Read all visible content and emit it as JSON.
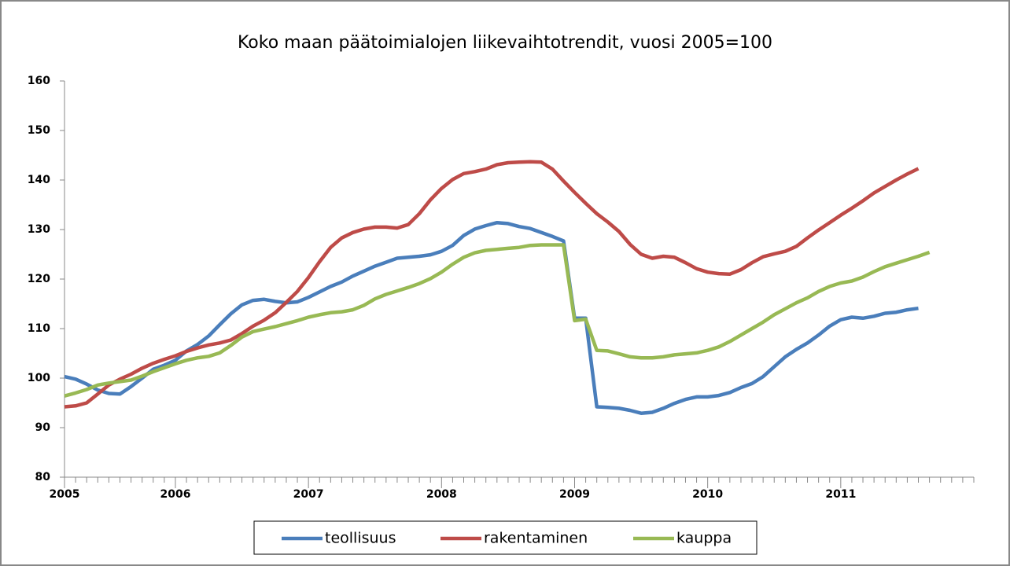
{
  "chart_data": {
    "type": "line",
    "title": "Koko maan päätoimialojen liikevaihtotrendit, vuosi 2005=100",
    "categories": [
      "2005",
      null,
      null,
      null,
      null,
      null,
      null,
      null,
      null,
      null,
      "2006",
      null,
      null,
      null,
      null,
      null,
      null,
      null,
      null,
      null,
      null,
      null,
      "2007",
      null,
      null,
      null,
      null,
      null,
      null,
      null,
      null,
      null,
      null,
      null,
      "2008",
      null,
      null,
      null,
      null,
      null,
      null,
      null,
      null,
      null,
      null,
      null,
      "2009",
      null,
      null,
      null,
      null,
      null,
      null,
      null,
      null,
      null,
      null,
      null,
      "2010",
      null,
      null,
      null,
      null,
      null,
      null,
      null,
      null,
      null,
      null,
      null,
      "2011",
      null,
      null,
      null,
      null,
      null,
      null,
      null,
      null,
      null,
      null,
      null
    ],
    "series": [
      {
        "name": "teollisuus",
        "color": "#4a7ebb",
        "values": [
          100.3,
          99.8,
          98.8,
          97.6,
          96.9,
          96.8,
          98.3,
          100.0,
          101.8,
          102.6,
          103.6,
          105.5,
          106.8,
          108.5,
          110.8,
          113,
          114.8,
          115.7,
          115.9,
          115.5,
          115.2,
          115.4,
          116.3,
          117.4,
          118.5,
          119.4,
          120.6,
          121.6,
          122.6,
          123.4,
          124.2,
          124.4,
          124.6,
          124.9,
          125.6,
          126.8,
          128.8,
          130.1,
          130.8,
          131.4,
          131.2,
          130.6,
          130.2,
          129.4,
          128.6,
          127.7,
          112.1,
          112.1,
          94.2,
          94.1,
          93.9,
          93.5,
          92.9,
          93.1,
          93.9,
          94.9,
          95.7,
          96.2,
          96.2,
          96.5,
          97.1,
          98.1,
          98.9,
          100.3,
          102.3,
          104.3,
          105.8,
          107.1,
          108.7,
          110.5,
          111.8,
          112.3,
          112.1,
          112.5,
          113.1,
          113.3,
          113.8,
          114.1,
          null,
          null,
          null,
          null
        ]
      },
      {
        "name": "rakentaminen",
        "color": "#be4b48",
        "values": [
          94.2,
          94.4,
          95,
          96.8,
          98.6,
          99.8,
          100.8,
          102,
          103,
          103.8,
          104.5,
          105.4,
          106.1,
          106.7,
          107.1,
          107.7,
          109,
          110.5,
          111.7,
          113.2,
          115.3,
          117.5,
          120.3,
          123.5,
          126.4,
          128.3,
          129.4,
          130.1,
          130.5,
          130.5,
          130.3,
          131,
          133.2,
          136,
          138.3,
          140.1,
          141.3,
          141.7,
          142.2,
          143.1,
          143.5,
          143.6,
          143.7,
          143.6,
          142.2,
          139.8,
          137.5,
          135.3,
          133.2,
          131.5,
          129.6,
          127,
          125,
          124.2,
          124.6,
          124.4,
          123.3,
          122.1,
          121.4,
          121.1,
          121,
          121.9,
          123.3,
          124.5,
          125.1,
          125.6,
          126.6,
          128.3,
          129.9,
          131.4,
          132.9,
          134.3,
          135.8,
          137.4,
          138.7,
          140,
          141.2,
          142.3,
          null,
          null,
          null,
          null
        ]
      },
      {
        "name": "kauppa",
        "color": "#98b954",
        "values": [
          96.4,
          97,
          97.7,
          98.6,
          99,
          99.3,
          99.6,
          100.4,
          101.3,
          102.1,
          102.9,
          103.6,
          104.1,
          104.4,
          105.1,
          106.6,
          108.3,
          109.4,
          109.9,
          110.4,
          111,
          111.6,
          112.3,
          112.8,
          113.2,
          113.4,
          113.8,
          114.7,
          116,
          116.9,
          117.6,
          118.3,
          119.1,
          120.1,
          121.4,
          123,
          124.4,
          125.3,
          125.8,
          126,
          126.2,
          126.4,
          126.8,
          126.9,
          126.9,
          126.9,
          111.6,
          111.9,
          105.6,
          105.5,
          104.9,
          104.3,
          104.1,
          104.1,
          104.3,
          104.7,
          104.9,
          105.1,
          105.6,
          106.3,
          107.4,
          108.7,
          110,
          111.3,
          112.8,
          114,
          115.2,
          116.2,
          117.5,
          118.5,
          119.2,
          119.6,
          120.4,
          121.5,
          122.5,
          123.2,
          123.9,
          124.6,
          125.4,
          null,
          null,
          null
        ]
      }
    ],
    "ylim": [
      80,
      160
    ],
    "yticks": [
      80,
      90,
      100,
      110,
      120,
      130,
      140,
      150,
      160
    ],
    "grid": false,
    "legend": "bottom"
  }
}
